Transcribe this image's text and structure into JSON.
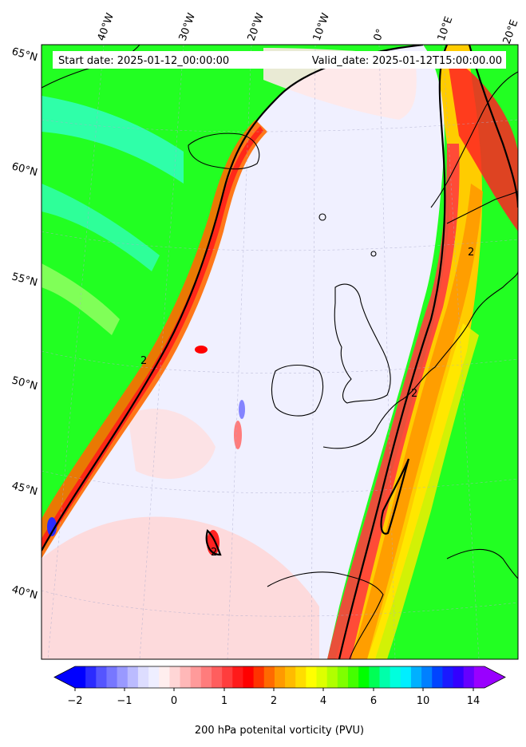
{
  "header": {
    "start_date": "Start date: 2025-01-12_00:00:00",
    "valid_date": "Valid_date: 2025-01-12T15:00:00.00"
  },
  "axes": {
    "lon_labels": [
      "40°W",
      "30°W",
      "20°W",
      "10°W",
      "0°",
      "10°E",
      "20°E"
    ],
    "lat_labels": [
      "65°N",
      "60°N",
      "55°N",
      "50°N",
      "45°N",
      "40°N"
    ]
  },
  "contour_label": "2",
  "colorbar": {
    "label": "200 hPa potenital vorticity (PVU)",
    "ticks": [
      "−2",
      "−1",
      "0",
      "1",
      "2",
      "4",
      "6",
      "10",
      "14"
    ],
    "colors": [
      "#0000ff",
      "#2b2bff",
      "#5555ff",
      "#7777ff",
      "#9999ff",
      "#bbbbff",
      "#ddddff",
      "#eeeeff",
      "#ffeeee",
      "#ffd6d6",
      "#ffb8b8",
      "#ff9a9a",
      "#ff7c7c",
      "#ff5e5e",
      "#ff3d3d",
      "#ff1a1a",
      "#ff0000",
      "#ff3300",
      "#ff6a00",
      "#ff9900",
      "#ffbb00",
      "#ffdd00",
      "#ffff00",
      "#ddff00",
      "#b0ff00",
      "#7fff00",
      "#44ff00",
      "#00ff00",
      "#00ff55",
      "#00ffaa",
      "#00ffdd",
      "#00eeff",
      "#00b0ff",
      "#0080ff",
      "#0044ff",
      "#1a1aff",
      "#3300ff",
      "#6600ff",
      "#9900ff"
    ]
  }
}
